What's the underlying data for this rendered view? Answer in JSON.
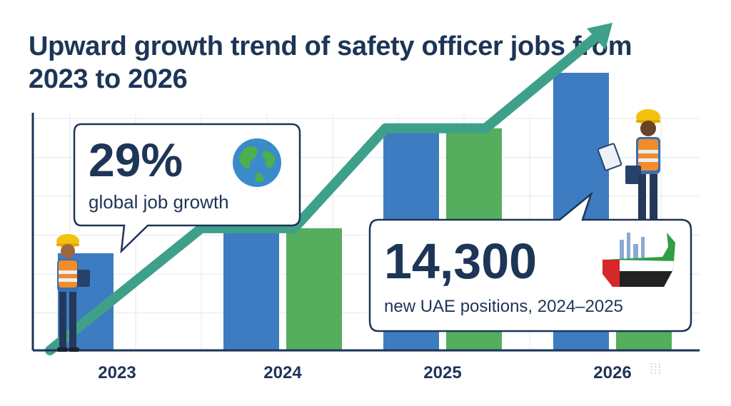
{
  "title": "Upward growth trend of safety officer jobs from 2023 to 2026",
  "chart_data": {
    "type": "bar",
    "categories": [
      "2023",
      "2024",
      "2025",
      "2026"
    ],
    "series": [
      {
        "values": [
          35,
          44,
          80,
          100
        ]
      },
      {
        "values": [
          0,
          44,
          80,
          12
        ]
      }
    ],
    "trend_line": [
      0,
      44,
      80,
      117
    ],
    "ylim": [
      0,
      100
    ],
    "grid": true,
    "colors": {
      "blue": "#3d7cc0",
      "green": "#55ad5e",
      "trend": "#3fa08a",
      "text": "#1d3557",
      "grid": "#e3e7ec"
    }
  },
  "callouts": {
    "global": {
      "number": "29%",
      "label": "global job growth",
      "icon": "globe-icon"
    },
    "uae": {
      "number": "14,300",
      "label": "new UAE positions, 2024–2025",
      "icon": "uae-map-icon"
    }
  },
  "figures": {
    "left": "safety-worker-with-clipboard",
    "right": "safety-worker-with-clipboard"
  }
}
